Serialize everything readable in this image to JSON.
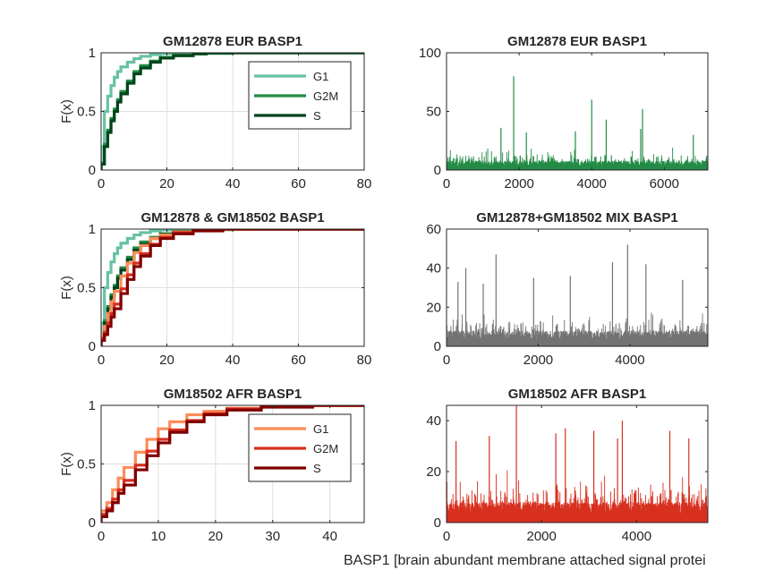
{
  "figure": {
    "xlabel": "BASP1 [brain abundant membrane attached signal protei"
  },
  "chart_data": [
    {
      "type": "line",
      "subtype": "ecdf",
      "title": "GM12878 EUR BASP1",
      "ylabel": "F(x)",
      "xlim": [
        0,
        80
      ],
      "ylim": [
        0,
        1
      ],
      "xticks": [
        0,
        20,
        40,
        60,
        80
      ],
      "yticks": [
        0,
        0.5,
        1
      ],
      "ytick_labels": [
        "0",
        "0.5",
        "1"
      ],
      "grid": true,
      "legend": "top-right",
      "series": [
        {
          "name": "G1",
          "color": "#66c2a4",
          "x": [
            0,
            1,
            2,
            3,
            4,
            5,
            6,
            8,
            10,
            12,
            15,
            18,
            22,
            28,
            40,
            80
          ],
          "y": [
            0.2,
            0.5,
            0.63,
            0.72,
            0.79,
            0.84,
            0.88,
            0.92,
            0.95,
            0.97,
            0.985,
            0.992,
            0.996,
            0.999,
            1,
            1
          ]
        },
        {
          "name": "G2M",
          "color": "#238b45",
          "x": [
            0,
            1,
            2,
            3,
            4,
            5,
            6,
            8,
            10,
            12,
            15,
            18,
            22,
            28,
            40,
            80
          ],
          "y": [
            0.06,
            0.22,
            0.34,
            0.44,
            0.52,
            0.6,
            0.67,
            0.76,
            0.84,
            0.89,
            0.93,
            0.96,
            0.98,
            0.995,
            1,
            1
          ]
        },
        {
          "name": "S",
          "color": "#00441b",
          "x": [
            0,
            1,
            2,
            3,
            4,
            5,
            6,
            8,
            10,
            12,
            15,
            18,
            22,
            28,
            32
          ],
          "y": [
            0.05,
            0.2,
            0.32,
            0.42,
            0.5,
            0.58,
            0.65,
            0.74,
            0.82,
            0.87,
            0.92,
            0.955,
            0.975,
            0.99,
            1
          ]
        }
      ]
    },
    {
      "type": "bar",
      "title": "GM12878 EUR BASP1",
      "color": "#238b45",
      "n_cells": 7200,
      "xlim": [
        0,
        7200
      ],
      "ylim": [
        0,
        100
      ],
      "xticks": [
        0,
        2000,
        4000,
        6000
      ],
      "yticks": [
        0,
        50,
        100
      ],
      "grid": false,
      "values_note": "per-cell counts mostly between 0 and 20",
      "peaks": [
        {
          "x": 1850,
          "y": 80
        },
        {
          "x": 4000,
          "y": 60
        },
        {
          "x": 5400,
          "y": 52
        },
        {
          "x": 4400,
          "y": 43
        },
        {
          "x": 1500,
          "y": 36
        },
        {
          "x": 5350,
          "y": 35
        },
        {
          "x": 3550,
          "y": 33
        },
        {
          "x": 2200,
          "y": 32
        },
        {
          "x": 6800,
          "y": 30
        }
      ]
    },
    {
      "type": "line",
      "subtype": "ecdf",
      "title": "GM12878 & GM18502 BASP1",
      "ylabel": "F(x)",
      "xlim": [
        0,
        80
      ],
      "ylim": [
        0,
        1
      ],
      "xticks": [
        0,
        20,
        40,
        60,
        80
      ],
      "yticks": [
        0,
        0.5,
        1
      ],
      "ytick_labels": [
        "0",
        "0.5",
        "1"
      ],
      "grid": true,
      "series": [
        {
          "color": "#66c2a4",
          "x": [
            0,
            1,
            2,
            3,
            4,
            5,
            6,
            8,
            10,
            12,
            15,
            18,
            22,
            28,
            40,
            80
          ],
          "y": [
            0.2,
            0.5,
            0.63,
            0.72,
            0.79,
            0.84,
            0.88,
            0.92,
            0.95,
            0.97,
            0.985,
            0.992,
            0.996,
            0.999,
            1,
            1
          ]
        },
        {
          "color": "#238b45",
          "x": [
            0,
            1,
            2,
            3,
            4,
            5,
            6,
            8,
            10,
            12,
            15,
            18,
            22,
            28,
            40,
            80
          ],
          "y": [
            0.06,
            0.22,
            0.34,
            0.44,
            0.52,
            0.6,
            0.67,
            0.76,
            0.84,
            0.89,
            0.93,
            0.96,
            0.98,
            0.995,
            1,
            1
          ]
        },
        {
          "color": "#00441b",
          "x": [
            0,
            1,
            2,
            3,
            4,
            5,
            6,
            8,
            10,
            12,
            15,
            18,
            22,
            28,
            32
          ],
          "y": [
            0.05,
            0.2,
            0.32,
            0.42,
            0.5,
            0.58,
            0.65,
            0.74,
            0.82,
            0.87,
            0.92,
            0.955,
            0.975,
            0.99,
            1
          ]
        },
        {
          "color": "#fc8d59",
          "x": [
            0,
            1,
            2,
            3,
            4,
            6,
            8,
            10,
            12,
            15,
            18,
            22,
            28,
            35,
            46
          ],
          "y": [
            0.1,
            0.17,
            0.28,
            0.38,
            0.47,
            0.6,
            0.71,
            0.8,
            0.86,
            0.92,
            0.95,
            0.975,
            0.99,
            0.997,
            1
          ]
        },
        {
          "color": "#d7301f",
          "x": [
            0,
            1,
            2,
            3,
            4,
            6,
            8,
            10,
            12,
            15,
            18,
            22,
            28,
            37
          ],
          "y": [
            0.07,
            0.12,
            0.2,
            0.28,
            0.36,
            0.49,
            0.61,
            0.71,
            0.79,
            0.87,
            0.93,
            0.97,
            0.99,
            1
          ]
        },
        {
          "color": "#7f0000",
          "x": [
            0,
            1,
            2,
            3,
            4,
            6,
            8,
            10,
            12,
            15,
            18,
            22,
            28,
            37
          ],
          "y": [
            0.05,
            0.1,
            0.17,
            0.25,
            0.32,
            0.45,
            0.57,
            0.68,
            0.77,
            0.86,
            0.92,
            0.96,
            0.985,
            1
          ]
        }
      ]
    },
    {
      "type": "bar",
      "title": "GM12878+GM18502 MIX BASP1",
      "color": "#737373",
      "n_cells": 5700,
      "xlim": [
        0,
        5700
      ],
      "ylim": [
        0,
        60
      ],
      "xticks": [
        0,
        2000,
        4000
      ],
      "yticks": [
        0,
        20,
        40,
        60
      ],
      "grid": false,
      "values_note": "per-cell counts mostly between 0 and 20",
      "peaks": [
        {
          "x": 3950,
          "y": 52
        },
        {
          "x": 1080,
          "y": 47
        },
        {
          "x": 3620,
          "y": 43
        },
        {
          "x": 4350,
          "y": 42
        },
        {
          "x": 420,
          "y": 40
        },
        {
          "x": 2700,
          "y": 36
        },
        {
          "x": 1900,
          "y": 35
        },
        {
          "x": 5150,
          "y": 34
        },
        {
          "x": 250,
          "y": 33
        },
        {
          "x": 800,
          "y": 32
        }
      ]
    },
    {
      "type": "line",
      "subtype": "ecdf",
      "title": "GM18502 AFR BASP1",
      "ylabel": "F(x)",
      "xlim": [
        0,
        46
      ],
      "ylim": [
        0,
        1
      ],
      "xticks": [
        0,
        10,
        20,
        30,
        40
      ],
      "yticks": [
        0,
        0.5,
        1
      ],
      "ytick_labels": [
        "0",
        "0.5",
        "1"
      ],
      "grid": true,
      "legend": "top-right",
      "series": [
        {
          "name": "G1",
          "color": "#fc8d59",
          "x": [
            0,
            1,
            2,
            3,
            4,
            6,
            8,
            10,
            12,
            15,
            18,
            22,
            28,
            35,
            46
          ],
          "y": [
            0.1,
            0.17,
            0.28,
            0.38,
            0.47,
            0.6,
            0.71,
            0.8,
            0.86,
            0.92,
            0.95,
            0.975,
            0.99,
            0.997,
            1
          ]
        },
        {
          "name": "G2M",
          "color": "#d7301f",
          "x": [
            0,
            1,
            2,
            3,
            4,
            6,
            8,
            10,
            12,
            15,
            18,
            22,
            28,
            37
          ],
          "y": [
            0.07,
            0.12,
            0.2,
            0.28,
            0.36,
            0.49,
            0.61,
            0.71,
            0.79,
            0.87,
            0.93,
            0.97,
            0.99,
            1
          ]
        },
        {
          "name": "S",
          "color": "#7f0000",
          "x": [
            0,
            1,
            2,
            3,
            4,
            6,
            8,
            10,
            12,
            15,
            18,
            22,
            28,
            37
          ],
          "y": [
            0.05,
            0.1,
            0.17,
            0.25,
            0.32,
            0.45,
            0.57,
            0.68,
            0.77,
            0.86,
            0.92,
            0.96,
            0.985,
            1
          ]
        }
      ]
    },
    {
      "type": "bar",
      "title": "GM18502 AFR BASP1",
      "color": "#d7301f",
      "n_cells": 5500,
      "xlim": [
        0,
        5500
      ],
      "ylim": [
        0,
        46
      ],
      "xticks": [
        0,
        2000,
        4000
      ],
      "yticks": [
        0,
        20,
        40
      ],
      "grid": false,
      "values_note": "per-cell counts mostly between 0 and 25",
      "peaks": [
        {
          "x": 1470,
          "y": 46
        },
        {
          "x": 3700,
          "y": 40
        },
        {
          "x": 2500,
          "y": 37
        },
        {
          "x": 4700,
          "y": 36
        },
        {
          "x": 3100,
          "y": 36
        },
        {
          "x": 2300,
          "y": 35
        },
        {
          "x": 900,
          "y": 34
        },
        {
          "x": 3600,
          "y": 33
        },
        {
          "x": 5100,
          "y": 33
        },
        {
          "x": 200,
          "y": 32
        }
      ]
    }
  ]
}
